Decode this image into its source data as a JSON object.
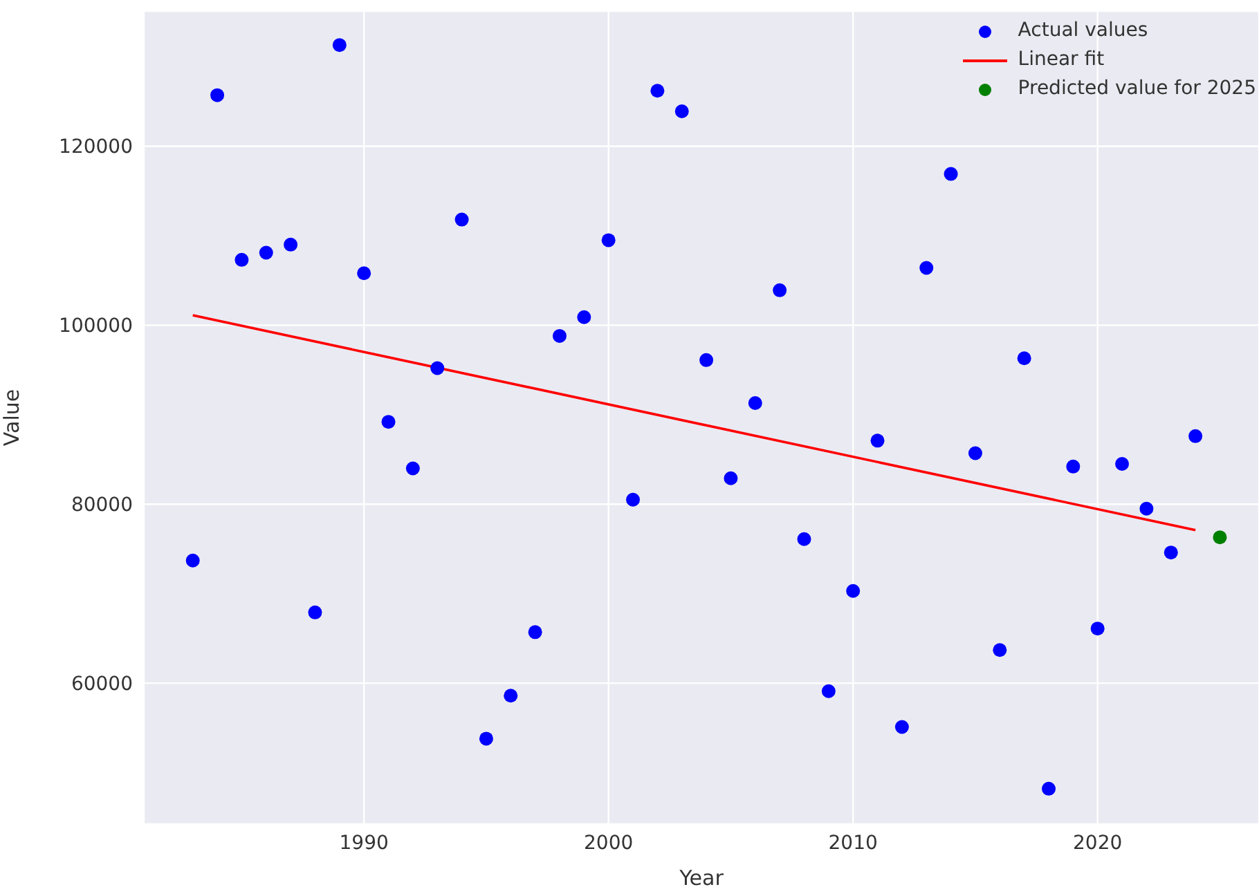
{
  "chart_data": {
    "type": "scatter",
    "xlabel": "Year",
    "ylabel": "Value",
    "xlim": [
      1981,
      2026.6
    ],
    "ylim": [
      44250,
      135100
    ],
    "xticks": [
      1990,
      2000,
      2010,
      2020
    ],
    "yticks": [
      60000,
      80000,
      100000,
      120000
    ],
    "grid": true,
    "legend": "top right",
    "marker": "circle",
    "series": [
      {
        "name": "Actual values",
        "color": "#0000ff",
        "x": [
          1983,
          1984,
          1985,
          1986,
          1987,
          1988,
          1989,
          1990,
          1991,
          1992,
          1993,
          1994,
          1995,
          1996,
          1997,
          1998,
          1999,
          2000,
          2001,
          2002,
          2003,
          2004,
          2005,
          2006,
          2007,
          2008,
          2009,
          2010,
          2011,
          2012,
          2013,
          2014,
          2015,
          2016,
          2017,
          2018,
          2019,
          2020,
          2021,
          2022,
          2023,
          2024
        ],
        "values": [
          73700,
          125700,
          107300,
          108100,
          109000,
          67900,
          131300,
          105800,
          89200,
          84000,
          95200,
          111800,
          53800,
          58600,
          65700,
          98800,
          100900,
          109500,
          80500,
          126200,
          123900,
          96100,
          82900,
          91300,
          103900,
          76100,
          59100,
          70300,
          87100,
          55100,
          106400,
          116900,
          85700,
          63700,
          96300,
          48200,
          84200,
          66100,
          84500,
          79500,
          74600,
          87600
        ]
      },
      {
        "name": "Linear fit",
        "type": "line",
        "marker": "none",
        "color": "#ff0000",
        "x": [
          1983,
          2024
        ],
        "values": [
          101100,
          77100
        ]
      },
      {
        "name": "Predicted value for 2025",
        "color": "#008000",
        "x": [
          2025
        ],
        "values": [
          76300
        ]
      }
    ]
  }
}
